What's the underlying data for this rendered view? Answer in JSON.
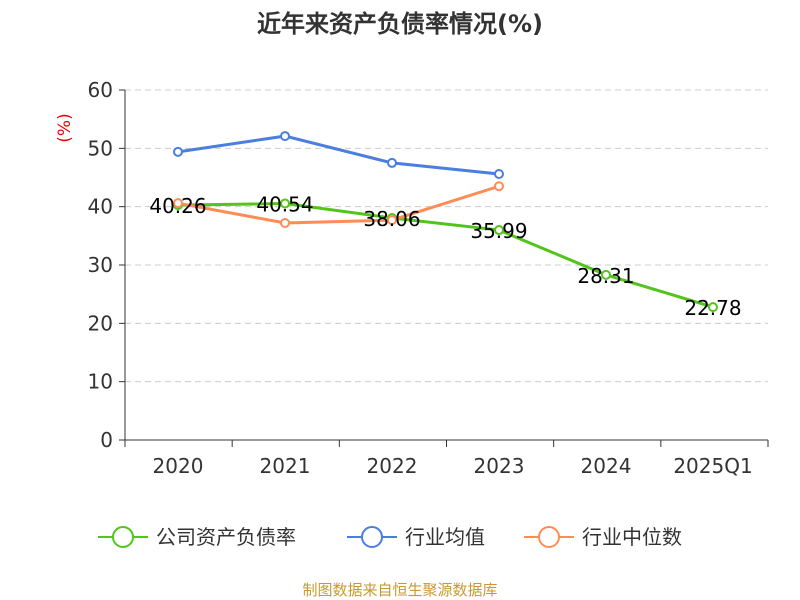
{
  "chart_data": {
    "type": "line",
    "title": "近年来资产负债率情况(%)",
    "ylabel": "(%)",
    "xlabel": "",
    "categories": [
      "2020",
      "2021",
      "2022",
      "2023",
      "2024",
      "2025Q1"
    ],
    "ylim": [
      0,
      60
    ],
    "yticks": [
      0,
      10,
      20,
      30,
      40,
      50,
      60
    ],
    "grid": true,
    "legend_position": "bottom",
    "series": [
      {
        "name": "公司资产负债率",
        "color": "#52c41a",
        "values": [
          40.26,
          40.54,
          38.06,
          35.99,
          28.31,
          22.78
        ],
        "labels": [
          "40.26",
          "40.54",
          "38.06",
          "35.99",
          "28.31",
          "22.78"
        ]
      },
      {
        "name": "行业均值",
        "color": "#4a7ee0",
        "values": [
          49.4,
          52.1,
          47.5,
          45.6,
          null,
          null
        ]
      },
      {
        "name": "行业中位数",
        "color": "#ff8c55",
        "values": [
          40.6,
          37.2,
          37.7,
          43.5,
          null,
          null
        ]
      }
    ],
    "source": "制图数据来自恒生聚源数据库"
  }
}
